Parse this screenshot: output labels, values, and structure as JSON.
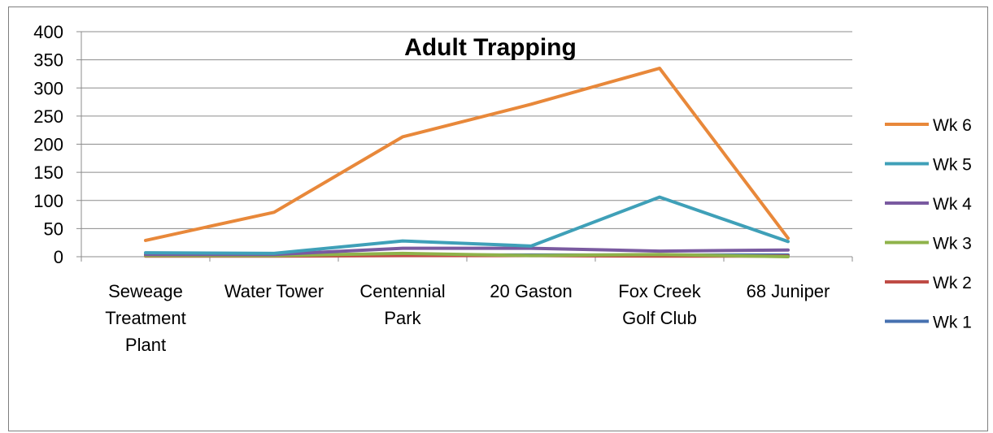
{
  "chart_data": {
    "type": "line",
    "title": "Adult Trapping",
    "xlabel": "",
    "ylabel": "",
    "ylim": [
      0,
      400
    ],
    "yticks": [
      "0",
      "50",
      "100",
      "150",
      "200",
      "250",
      "300",
      "350",
      "400"
    ],
    "grid": true,
    "legend_position": "right",
    "categories": [
      [
        "Seweage",
        "Treatment",
        "Plant"
      ],
      [
        "Water Tower"
      ],
      [
        "Centennial",
        "Park"
      ],
      [
        "20 Gaston"
      ],
      [
        "Fox Creek",
        "Golf Club"
      ],
      [
        "68 Juniper"
      ]
    ],
    "series": [
      {
        "name": "Wk 6",
        "color": "#e8883a",
        "values": [
          29,
          79,
          213,
          271,
          335,
          33
        ]
      },
      {
        "name": "Wk 5",
        "color": "#3fa0b8",
        "values": [
          7,
          6,
          28,
          19,
          106,
          27
        ]
      },
      {
        "name": "Wk 4",
        "color": "#7a5aa0",
        "values": [
          4,
          4,
          15,
          15,
          10,
          12
        ]
      },
      {
        "name": "Wk 3",
        "color": "#8fb34a",
        "values": [
          2,
          2,
          6,
          2,
          4,
          0
        ]
      },
      {
        "name": "Wk 2",
        "color": "#bf4b45",
        "values": [
          1,
          1,
          2,
          2,
          1,
          1
        ]
      },
      {
        "name": "Wk 1",
        "color": "#4671b0",
        "values": [
          3,
          3,
          3,
          3,
          3,
          3
        ]
      }
    ]
  }
}
